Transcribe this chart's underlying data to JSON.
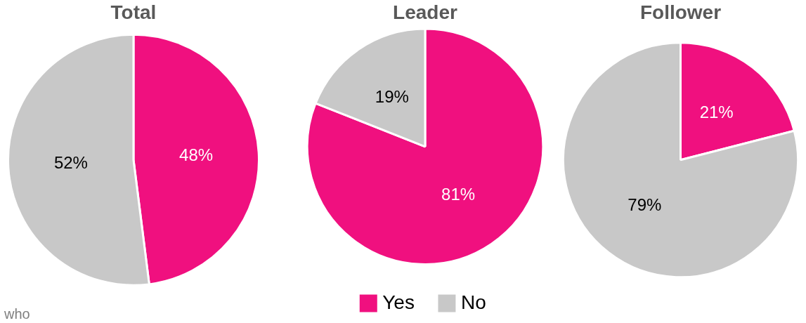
{
  "chart_data": [
    {
      "type": "pie",
      "title": "Total",
      "categories": [
        null,
        null
      ],
      "values": [
        48,
        52
      ],
      "value_labels": [
        "48%",
        "52%"
      ],
      "colors": [
        "#f0107f",
        "#c8c8c8"
      ],
      "annotations": [
        "who"
      ]
    },
    {
      "type": "pie",
      "title": "Leader",
      "categories": [
        "Yes",
        "No"
      ],
      "values": [
        81,
        19
      ],
      "value_labels": [
        "81%",
        "19%"
      ],
      "colors": [
        "#f0107f",
        "#c8c8c8"
      ],
      "legend": "bottom"
    },
    {
      "type": "pie",
      "title": "Follower",
      "categories": [
        null,
        null
      ],
      "values": [
        21,
        79
      ],
      "value_labels": [
        "21%",
        "79%"
      ],
      "colors": [
        "#f0107f",
        "#c8c8c8"
      ]
    }
  ]
}
